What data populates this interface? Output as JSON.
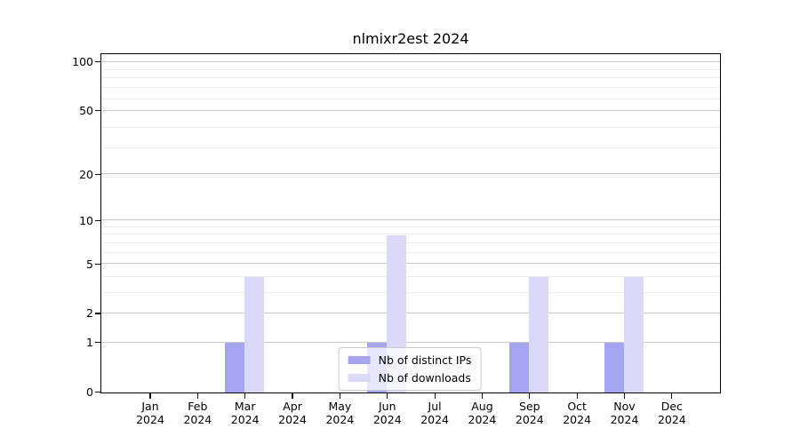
{
  "chart_data": {
    "type": "bar",
    "title": "nlmixr2est 2024",
    "categories": [
      "Jan",
      "Feb",
      "Mar",
      "Apr",
      "May",
      "Jun",
      "Jul",
      "Aug",
      "Sep",
      "Oct",
      "Nov",
      "Dec"
    ],
    "year_label": "2024",
    "series": [
      {
        "name": "Nb of distinct IPs",
        "color": "#a5a5f2",
        "values": [
          0,
          0,
          1,
          0,
          0,
          1,
          0,
          0,
          1,
          0,
          1,
          0
        ]
      },
      {
        "name": "Nb of downloads",
        "color": "#dadaf8",
        "values": [
          0,
          0,
          4,
          0,
          0,
          8,
          0,
          0,
          4,
          0,
          4,
          0
        ]
      }
    ],
    "xlabel": "",
    "ylabel": "",
    "y_axis": {
      "scale": "log10(1+x)",
      "ticks": [
        0,
        1,
        2,
        5,
        10,
        20,
        50,
        100
      ],
      "minor_gridlines": [
        3,
        4,
        6,
        7,
        8,
        9,
        19,
        29,
        39,
        59,
        69,
        79,
        89
      ],
      "range": [
        0,
        111
      ]
    },
    "grid": {
      "orientation": "horizontal",
      "major_color": "#c8c8c8",
      "minor_color": "#ededed"
    },
    "legend": {
      "location": "lower center"
    },
    "frame_color": "#000000",
    "background_color": "#ffffff"
  }
}
